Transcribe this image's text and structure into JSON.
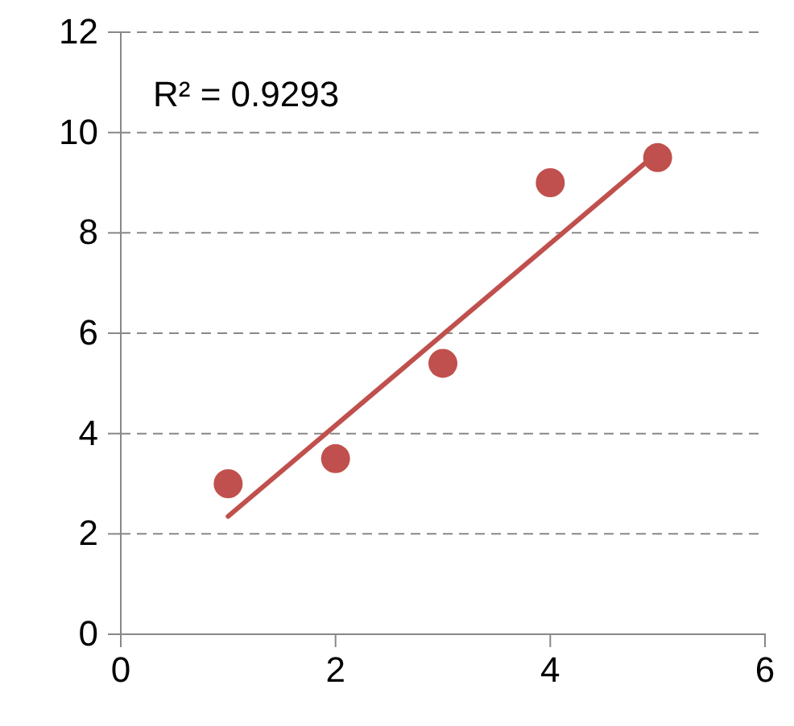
{
  "chart_data": {
    "type": "scatter",
    "xlim": [
      0,
      6
    ],
    "xticks": [
      0,
      2,
      4,
      6
    ],
    "ylim": [
      0,
      12
    ],
    "yticks": [
      0,
      2,
      4,
      6,
      8,
      10,
      12
    ],
    "grid": "y",
    "annotations": [
      "R² = 0.9293"
    ],
    "series": [
      {
        "marker": "circle",
        "color": "#c0504d",
        "x": [
          1,
          2,
          3,
          4,
          5
        ],
        "values": [
          3,
          3.5,
          5.4,
          9,
          9.5
        ]
      },
      {
        "type": "line",
        "marker": "none",
        "color": "#c0504d",
        "x": [
          1,
          5
        ],
        "values": [
          2.35,
          9.6
        ]
      }
    ]
  }
}
